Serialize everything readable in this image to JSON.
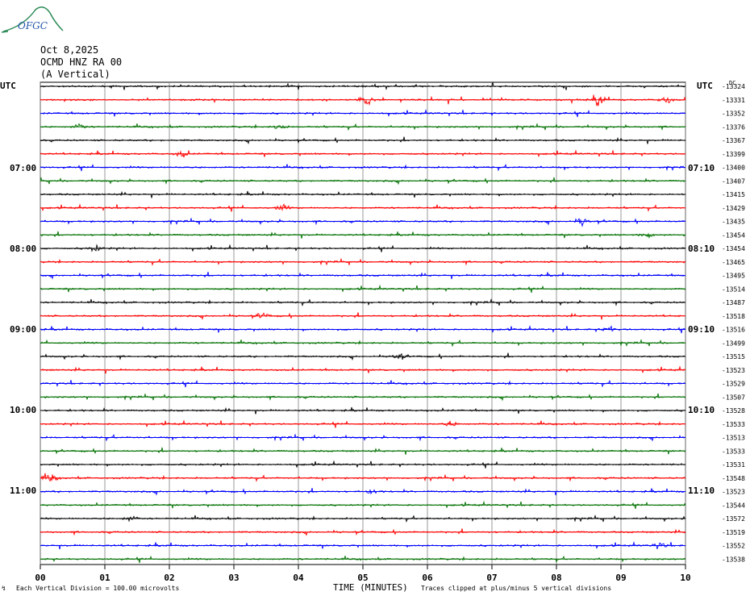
{
  "logo": {
    "text": "OFGC"
  },
  "header": {
    "date": "Oct 8,2025",
    "station": "OCMD HNZ RA 00",
    "component": "(A Vertical)"
  },
  "left_axis": {
    "unit": "UTC",
    "labels": [
      "07:00",
      "08:00",
      "09:00",
      "10:00",
      "11:00"
    ]
  },
  "right_axis": {
    "unit": "UTC",
    "labels": [
      "07:10",
      "08:10",
      "09:10",
      "10:10",
      "11:10"
    ]
  },
  "footer": {
    "scale_note": "Each Vertical Division =  100.00 microvolts",
    "clip_note": "Traces clipped at plus/minus 5 vertical divisions"
  },
  "colors": {
    "trace_cycle": [
      "#000000",
      "#ff0000",
      "#0000ff",
      "#007000"
    ],
    "grid": "#808080"
  },
  "chart_data": {
    "type": "line",
    "description_kind": "helicorder seismogram",
    "xlabel": "TIME (MINUTES)",
    "x_ticks": [
      "00",
      "01",
      "02",
      "03",
      "04",
      "05",
      "06",
      "07",
      "08",
      "09",
      "10"
    ],
    "xlim": [
      0,
      10
    ],
    "trace_minutes": 10,
    "first_trace_marker": "DC",
    "dc_offsets": [
      "-13324",
      "-13331",
      "-13352",
      "-13376",
      "-13367",
      "-13399",
      "-13400",
      "-13407",
      "-13415",
      "-13429",
      "-13435",
      "-13454",
      "-13454",
      "-13465",
      "-13495",
      "-13514",
      "-13487",
      "-13518",
      "-13516",
      "-13499",
      "-13515",
      "-13523",
      "-13529",
      "-13507",
      "-13528",
      "-13533",
      "-13513",
      "-13533",
      "-13531",
      "-13548",
      "-13523",
      "-13544",
      "-13572",
      "-13519",
      "-13552",
      "-13538"
    ],
    "events": [
      {
        "trace": 1,
        "minute": 5.05,
        "amp": 3.2
      },
      {
        "trace": 1,
        "minute": 8.65,
        "amp": 2.6
      },
      {
        "trace": 1,
        "minute": 9.7,
        "amp": 1.4
      },
      {
        "trace": 3,
        "minute": 0.6,
        "amp": 1.2
      },
      {
        "trace": 3,
        "minute": 3.7,
        "amp": 1.3
      },
      {
        "trace": 5,
        "minute": 2.2,
        "amp": 1.4
      },
      {
        "trace": 9,
        "minute": 3.75,
        "amp": 1.6
      },
      {
        "trace": 10,
        "minute": 8.4,
        "amp": 1.5
      },
      {
        "trace": 11,
        "minute": 9.4,
        "amp": 1.3
      },
      {
        "trace": 12,
        "minute": 0.85,
        "amp": 1.5
      },
      {
        "trace": 17,
        "minute": 3.45,
        "amp": 1.3
      },
      {
        "trace": 18,
        "minute": 8.8,
        "amp": 1.4
      },
      {
        "trace": 20,
        "minute": 5.55,
        "amp": 1.3
      },
      {
        "trace": 25,
        "minute": 6.35,
        "amp": 1.2
      },
      {
        "trace": 29,
        "minute": 0.15,
        "amp": 1.6
      },
      {
        "trace": 30,
        "minute": 5.15,
        "amp": 1.0
      },
      {
        "trace": 32,
        "minute": 1.4,
        "amp": 1.3
      },
      {
        "trace": 34,
        "minute": 9.6,
        "amp": 1.2
      }
    ]
  }
}
